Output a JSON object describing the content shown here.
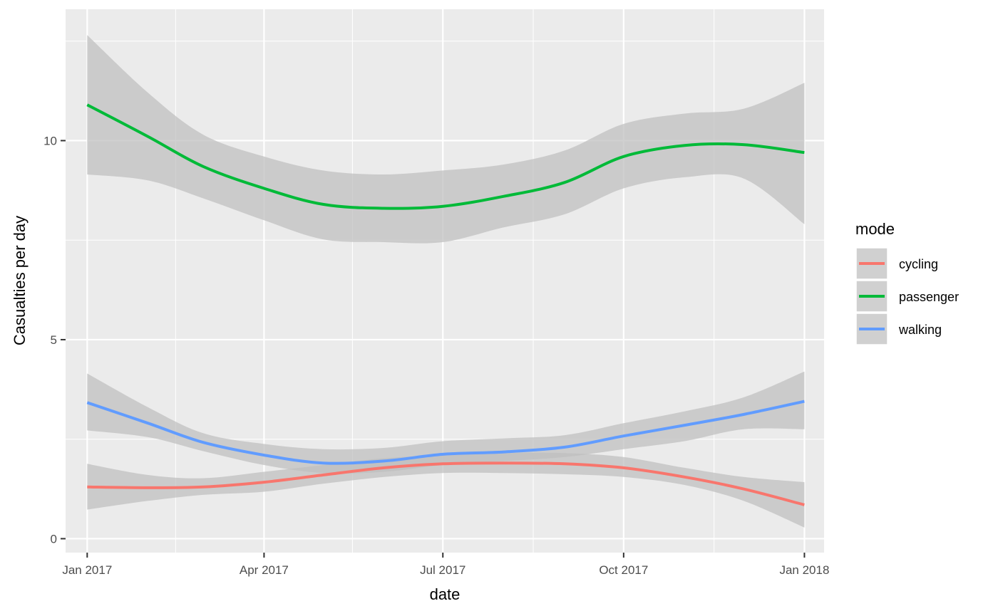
{
  "chart_data": {
    "type": "line",
    "title": "",
    "xlabel": "date",
    "ylabel": "Casualties per day",
    "x_type": "date",
    "xlim": [
      "2016-12-21",
      "2018-01-11"
    ],
    "ylim": [
      -0.35,
      13.3
    ],
    "x_ticks": [
      {
        "value": "2017-01-01",
        "label": "Jan 2017"
      },
      {
        "value": "2017-04-01",
        "label": "Apr 2017"
      },
      {
        "value": "2017-07-01",
        "label": "Jul 2017"
      },
      {
        "value": "2017-10-01",
        "label": "Oct 2017"
      },
      {
        "value": "2018-01-01",
        "label": "Jan 2018"
      }
    ],
    "x_minor_ticks": [
      "2017-02-15",
      "2017-05-16",
      "2017-08-16",
      "2017-11-16"
    ],
    "y_ticks": [
      {
        "value": 0,
        "label": "0"
      },
      {
        "value": 5,
        "label": "5"
      },
      {
        "value": 10,
        "label": "10"
      }
    ],
    "y_minor_ticks": [
      2.5,
      7.5,
      12.5
    ],
    "grid": true,
    "panel_background": "#ebebeb",
    "ribbon_color": "#bebebe",
    "legend": {
      "title": "mode",
      "position": "right"
    },
    "series": [
      {
        "name": "cycling",
        "color": "#f8766d",
        "x": [
          "2017-01-01",
          "2017-02-01",
          "2017-03-01",
          "2017-04-01",
          "2017-05-01",
          "2017-06-01",
          "2017-07-01",
          "2017-08-01",
          "2017-09-01",
          "2017-10-01",
          "2017-11-01",
          "2017-12-01",
          "2018-01-01"
        ],
        "y": [
          1.3,
          1.28,
          1.3,
          1.42,
          1.6,
          1.78,
          1.88,
          1.9,
          1.88,
          1.78,
          1.55,
          1.25,
          0.85
        ],
        "lower": [
          0.73,
          0.95,
          1.1,
          1.18,
          1.38,
          1.55,
          1.65,
          1.65,
          1.62,
          1.55,
          1.35,
          0.95,
          0.28
        ],
        "upper": [
          1.88,
          1.6,
          1.52,
          1.68,
          1.85,
          2.02,
          2.1,
          2.15,
          2.15,
          2.05,
          1.78,
          1.55,
          1.42
        ]
      },
      {
        "name": "passenger",
        "color": "#00ba38",
        "x": [
          "2017-01-01",
          "2017-02-01",
          "2017-03-01",
          "2017-04-01",
          "2017-05-01",
          "2017-06-01",
          "2017-07-01",
          "2017-08-01",
          "2017-09-01",
          "2017-10-01",
          "2017-11-01",
          "2017-12-01",
          "2018-01-01"
        ],
        "y": [
          10.9,
          10.1,
          9.35,
          8.8,
          8.4,
          8.3,
          8.35,
          8.6,
          8.95,
          9.6,
          9.88,
          9.9,
          9.7
        ],
        "lower": [
          9.15,
          9.0,
          8.55,
          8.0,
          7.52,
          7.45,
          7.45,
          7.82,
          8.15,
          8.8,
          9.08,
          9.05,
          7.9
        ],
        "upper": [
          12.65,
          11.2,
          10.15,
          9.6,
          9.25,
          9.15,
          9.25,
          9.4,
          9.75,
          10.42,
          10.68,
          10.8,
          11.45
        ]
      },
      {
        "name": "walking",
        "color": "#619cff",
        "x": [
          "2017-01-01",
          "2017-02-01",
          "2017-03-01",
          "2017-04-01",
          "2017-05-01",
          "2017-06-01",
          "2017-07-01",
          "2017-08-01",
          "2017-09-01",
          "2017-10-01",
          "2017-11-01",
          "2017-12-01",
          "2018-01-01"
        ],
        "y": [
          3.42,
          2.9,
          2.42,
          2.1,
          1.9,
          1.95,
          2.12,
          2.18,
          2.3,
          2.58,
          2.85,
          3.12,
          3.45
        ],
        "lower": [
          2.72,
          2.55,
          2.2,
          1.85,
          1.65,
          1.68,
          1.85,
          1.95,
          2.05,
          2.25,
          2.45,
          2.75,
          2.75
        ],
        "upper": [
          4.15,
          3.3,
          2.65,
          2.38,
          2.25,
          2.28,
          2.45,
          2.52,
          2.6,
          2.9,
          3.2,
          3.55,
          4.2
        ]
      }
    ]
  }
}
